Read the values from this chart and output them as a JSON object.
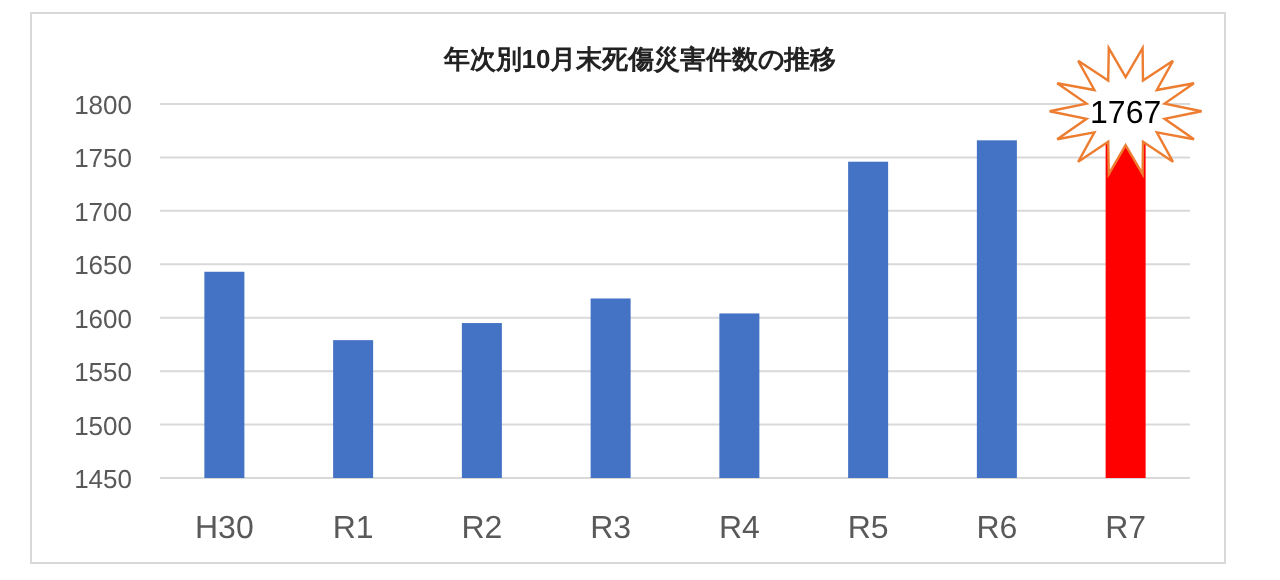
{
  "chart_data": {
    "type": "bar",
    "title": "年次別10月末死傷災害件数の推移",
    "categories": [
      "H30",
      "R1",
      "R2",
      "R3",
      "R4",
      "R5",
      "R6",
      "R7"
    ],
    "values": [
      1643,
      1579,
      1595,
      1618,
      1604,
      1746,
      1766,
      1767
    ],
    "colors": [
      "#4472c4",
      "#4472c4",
      "#4472c4",
      "#4472c4",
      "#4472c4",
      "#4472c4",
      "#4472c4",
      "#ff0000"
    ],
    "value_labels": [
      null,
      null,
      null,
      null,
      null,
      null,
      null,
      "1767"
    ],
    "ylim": [
      1450,
      1800
    ],
    "yticks": [
      1450,
      1500,
      1550,
      1600,
      1650,
      1700,
      1750,
      1800
    ],
    "grid": "y"
  }
}
